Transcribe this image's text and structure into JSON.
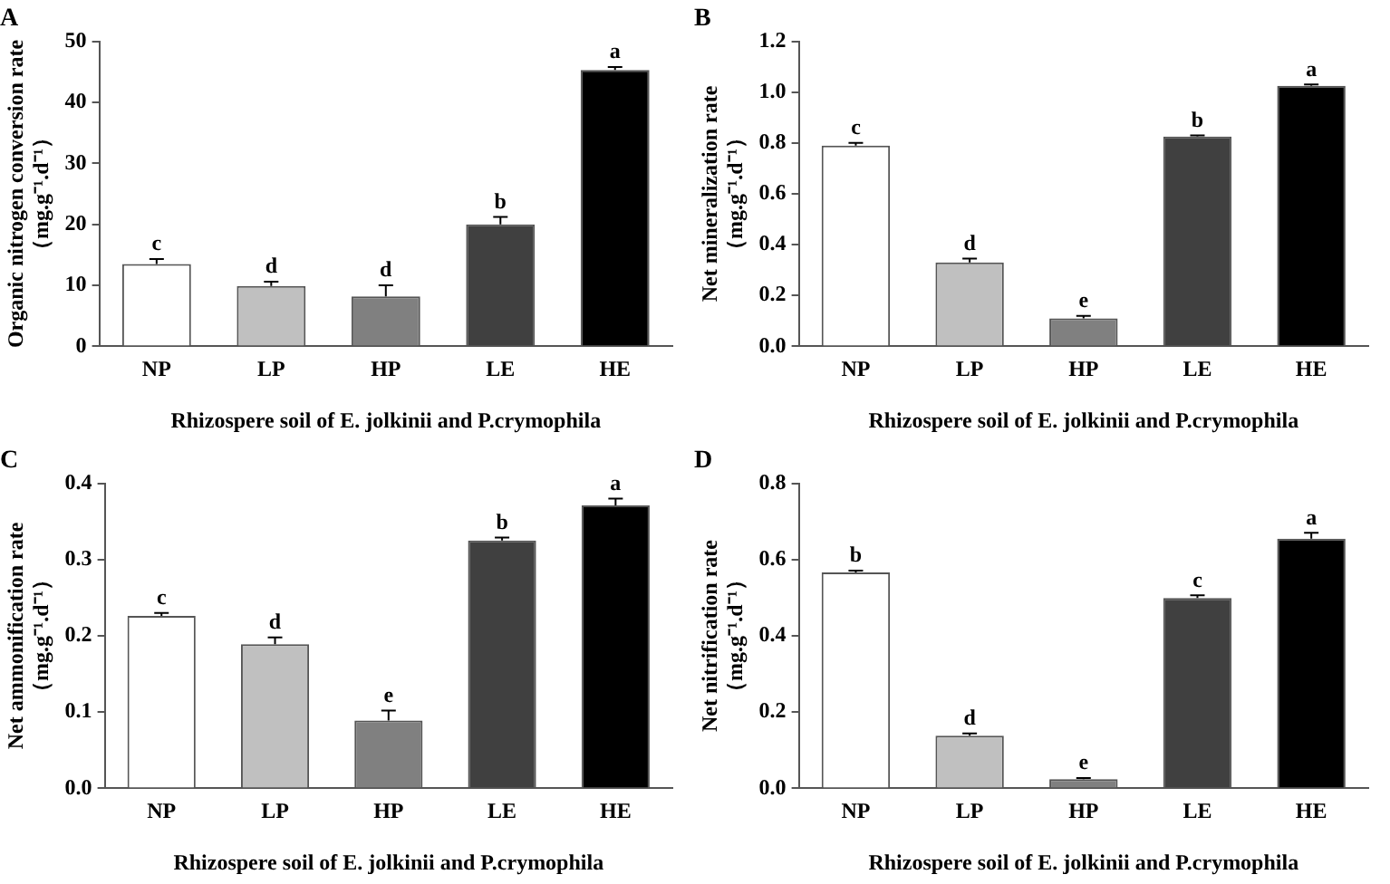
{
  "chart_data": [
    {
      "type": "bar",
      "title": "A",
      "xlabel": "Rhizospere soil of E. jolkinii and P.crymophila",
      "ylabel": "Organic nitrogen conversion rate\n（mg.g⁻¹.d⁻¹）",
      "categories": [
        "NP",
        "LP",
        "HP",
        "LE",
        "HE"
      ],
      "values": [
        13.5,
        9.9,
        8.2,
        20.0,
        45.3
      ],
      "errors": [
        [
          13.5,
          14.3
        ],
        [
          9.9,
          10.6
        ],
        [
          8.2,
          10.0
        ],
        [
          20.0,
          21.2
        ],
        [
          45.3,
          45.8
        ]
      ],
      "colors": [
        "#ffffff",
        "#c0c0c0",
        "#808080",
        "#404040",
        "#000000"
      ],
      "ylim": [
        0,
        50
      ],
      "yticks": [
        0,
        10,
        20,
        30,
        40,
        50
      ],
      "grid": false,
      "legend": false,
      "annotations": [
        {
          "text": "c",
          "x": "NP",
          "y": 14.3
        },
        {
          "text": "d",
          "x": "LP",
          "y": 10.6
        },
        {
          "text": "d",
          "x": "HP",
          "y": 10.0
        },
        {
          "text": "b",
          "x": "LE",
          "y": 21.2
        },
        {
          "text": "a",
          "x": "HE",
          "y": 45.8
        }
      ]
    },
    {
      "type": "bar",
      "title": "B",
      "xlabel": "Rhizospere soil of E. jolkinii and P.crymophila",
      "ylabel": "Net mineralization rate\n（mg.g⁻¹.d⁻¹）",
      "categories": [
        "NP",
        "LP",
        "HP",
        "LE",
        "HE"
      ],
      "values": [
        0.79,
        0.33,
        0.11,
        0.825,
        1.025
      ],
      "errors": [
        [
          0.79,
          0.8
        ],
        [
          0.33,
          0.345
        ],
        [
          0.11,
          0.12
        ],
        [
          0.825,
          0.83
        ],
        [
          1.025,
          1.03
        ]
      ],
      "colors": [
        "#ffffff",
        "#c0c0c0",
        "#808080",
        "#404040",
        "#000000"
      ],
      "ylim": [
        0,
        1.2
      ],
      "yticks": [
        {
          "value": 0,
          "label": "0.0"
        },
        {
          "value": 0.2,
          "label": "0.2"
        },
        {
          "value": 0.4,
          "label": "0.4"
        },
        {
          "value": 0.6,
          "label": "0.6"
        },
        {
          "value": 0.8,
          "label": "0.8"
        },
        {
          "value": 1,
          "label": "1.0"
        },
        {
          "value": 1.2,
          "label": "1.2"
        }
      ],
      "grid": false,
      "legend": false,
      "annotations": [
        {
          "text": "c",
          "x": "NP",
          "y": 0.8
        },
        {
          "text": "d",
          "x": "LP",
          "y": 0.345
        },
        {
          "text": "e",
          "x": "HP",
          "y": 0.12
        },
        {
          "text": "b",
          "x": "LE",
          "y": 0.83
        },
        {
          "text": "a",
          "x": "HE",
          "y": 1.03
        }
      ]
    },
    {
      "type": "bar",
      "title": "C",
      "xlabel": "Rhizospere soil of E. jolkinii and P.crymophila",
      "ylabel": "Net ammonification rate\n（mg.g⁻¹.d⁻¹）",
      "categories": [
        "NP",
        "LP",
        "HP",
        "LE",
        "HE"
      ],
      "values": [
        0.226,
        0.189,
        0.089,
        0.325,
        0.371
      ],
      "errors": [
        [
          0.226,
          0.23
        ],
        [
          0.189,
          0.198
        ],
        [
          0.089,
          0.102
        ],
        [
          0.325,
          0.329
        ],
        [
          0.371,
          0.38
        ]
      ],
      "colors": [
        "#ffffff",
        "#c0c0c0",
        "#808080",
        "#404040",
        "#000000"
      ],
      "ylim": [
        0,
        0.4
      ],
      "yticks": [
        {
          "value": 0,
          "label": "0.0"
        },
        0.1,
        0.2,
        0.3,
        0.4
      ],
      "grid": false,
      "legend": false,
      "annotations": [
        {
          "text": "c",
          "x": "NP",
          "y": 0.23
        },
        {
          "text": "d",
          "x": "LP",
          "y": 0.198
        },
        {
          "text": "e",
          "x": "HP",
          "y": 0.102
        },
        {
          "text": "b",
          "x": "LE",
          "y": 0.329
        },
        {
          "text": "a",
          "x": "HE",
          "y": 0.38
        }
      ]
    },
    {
      "type": "bar",
      "title": "D",
      "xlabel": "Rhizospere soil of E. jolkinii and P.crymophila",
      "ylabel": "Net nitrification rate\n（mg.g⁻¹.d⁻¹）",
      "categories": [
        "NP",
        "LP",
        "HP",
        "LE",
        "HE"
      ],
      "values": [
        0.566,
        0.138,
        0.024,
        0.499,
        0.655
      ],
      "errors": [
        [
          0.566,
          0.571
        ],
        [
          0.138,
          0.144
        ],
        [
          0.024,
          0.027
        ],
        [
          0.499,
          0.506
        ],
        [
          0.655,
          0.67
        ]
      ],
      "colors": [
        "#ffffff",
        "#c0c0c0",
        "#808080",
        "#404040",
        "#000000"
      ],
      "ylim": [
        0,
        0.8
      ],
      "yticks": [
        {
          "value": 0,
          "label": "0.0"
        },
        0.2,
        0.4,
        0.6,
        0.8
      ],
      "grid": false,
      "legend": false,
      "annotations": [
        {
          "text": "b",
          "x": "NP",
          "y": 0.571
        },
        {
          "text": "d",
          "x": "LP",
          "y": 0.144
        },
        {
          "text": "e",
          "x": "HP",
          "y": 0.027
        },
        {
          "text": "c",
          "x": "LE",
          "y": 0.506
        },
        {
          "text": "a",
          "x": "HE",
          "y": 0.67
        }
      ]
    }
  ]
}
